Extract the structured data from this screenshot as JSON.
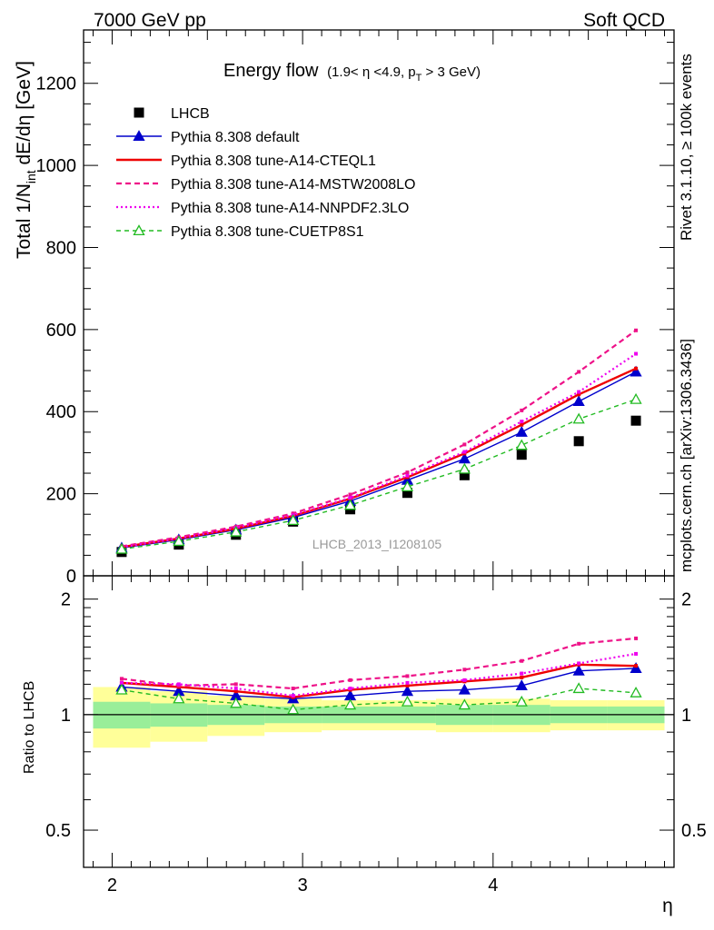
{
  "header": {
    "left": "7000 GeV pp",
    "right": "Soft QCD"
  },
  "side_labels": {
    "top": "Rivet 3.1.10, ≥ 100k events",
    "bottom": "mcplots.cern.ch [arXiv:1306.3436]"
  },
  "chart_data": [
    {
      "type": "line",
      "panel": "main",
      "title_main": "Energy flow",
      "title_sub": "(1.9< η <4.9, p",
      "title_sub_sub": "T",
      "title_sub_end": " > 3 GeV)",
      "ylabel": "Total 1/N",
      "ylabel_sub": "int",
      "ylabel_end": " dE/dη [GeV]",
      "xlabel": "η",
      "watermark": "LHCB_2013_I1208105",
      "xlim": [
        1.85,
        4.95
      ],
      "ylim": [
        0,
        1330
      ],
      "yticks": [
        0,
        200,
        400,
        600,
        800,
        1000,
        1200
      ],
      "ytick_labels": [
        "0",
        "200",
        "400",
        "600",
        "800",
        "1000",
        "1200"
      ],
      "xticks": [
        2,
        3,
        4
      ],
      "xtick_labels": [
        "2",
        "3",
        "4"
      ],
      "x": [
        2.05,
        2.35,
        2.65,
        2.95,
        3.25,
        3.55,
        3.85,
        4.15,
        4.45,
        4.75
      ],
      "bin_edges": [
        1.9,
        2.2,
        2.5,
        2.8,
        3.1,
        3.4,
        3.7,
        4.0,
        4.3,
        4.6,
        4.9
      ],
      "series": [
        {
          "name": "LHCB",
          "style": "data",
          "color": "#000000",
          "values": [
            58,
            76,
            100,
            132,
            162,
            202,
            245,
            295,
            328,
            378
          ]
        },
        {
          "name": "Pythia 8.308 default",
          "style": "solid-triangle",
          "color": "#0000cc",
          "values": [
            68,
            88,
            112,
            142,
            182,
            233,
            285,
            350,
            425,
            497
          ]
        },
        {
          "name": "Pythia 8.308 tune-A14-CTEQL1",
          "style": "solid-thick",
          "color": "#ee0000",
          "values": [
            70,
            91,
            115,
            146,
            188,
            240,
            298,
            368,
            442,
            505
          ]
        },
        {
          "name": "Pythia 8.308 tune-A14-MSTW2008LO",
          "style": "dashed",
          "color": "#ee1188",
          "values": [
            72,
            94,
            120,
            152,
            198,
            252,
            320,
            403,
            497,
            598
          ]
        },
        {
          "name": "Pythia 8.308 tune-A14-NNPDF2.3LO",
          "style": "dotted",
          "color": "#ee00ee",
          "values": [
            70,
            91,
            117,
            148,
            190,
            244,
            302,
            376,
            448,
            541
          ]
        },
        {
          "name": "Pythia 8.308 tune-CUETP8S1",
          "style": "dashed-open-triangle",
          "color": "#22bb22",
          "values": [
            65,
            84,
            107,
            135,
            172,
            217,
            260,
            318,
            382,
            430
          ]
        }
      ]
    },
    {
      "type": "line",
      "panel": "ratio",
      "ylabel": "Ratio to LHCB",
      "ylim": [
        0.4,
        2.3
      ],
      "log_scale": true,
      "yticks": [
        0.5,
        1,
        2
      ],
      "ytick_labels": [
        "0.5",
        "1",
        "2"
      ],
      "band_green": [
        [
          0.92,
          1.08
        ],
        [
          0.93,
          1.07
        ],
        [
          0.94,
          1.06
        ],
        [
          0.95,
          1.05
        ],
        [
          0.95,
          1.05
        ],
        [
          0.95,
          1.05
        ],
        [
          0.94,
          1.06
        ],
        [
          0.94,
          1.06
        ],
        [
          0.95,
          1.05
        ],
        [
          0.95,
          1.05
        ]
      ],
      "band_yellow": [
        [
          0.82,
          1.18
        ],
        [
          0.85,
          1.15
        ],
        [
          0.88,
          1.12
        ],
        [
          0.9,
          1.1
        ],
        [
          0.91,
          1.09
        ],
        [
          0.91,
          1.09
        ],
        [
          0.9,
          1.1
        ],
        [
          0.9,
          1.1
        ],
        [
          0.91,
          1.09
        ],
        [
          0.91,
          1.09
        ]
      ],
      "series": [
        {
          "name": "Pythia 8.308 default",
          "values": [
            1.18,
            1.15,
            1.12,
            1.1,
            1.12,
            1.15,
            1.16,
            1.19,
            1.3,
            1.32
          ]
        },
        {
          "name": "Pythia 8.308 tune-A14-CTEQL1",
          "values": [
            1.21,
            1.18,
            1.15,
            1.11,
            1.16,
            1.19,
            1.22,
            1.25,
            1.35,
            1.34
          ]
        },
        {
          "name": "Pythia 8.308 tune-A14-MSTW2008LO",
          "values": [
            1.24,
            1.19,
            1.2,
            1.17,
            1.23,
            1.26,
            1.31,
            1.38,
            1.53,
            1.58
          ]
        },
        {
          "name": "Pythia 8.308 tune-A14-NNPDF2.3LO",
          "values": [
            1.21,
            1.2,
            1.17,
            1.12,
            1.17,
            1.21,
            1.23,
            1.28,
            1.36,
            1.44
          ]
        },
        {
          "name": "Pythia 8.308 tune-CUETP8S1",
          "values": [
            1.16,
            1.1,
            1.07,
            1.03,
            1.06,
            1.08,
            1.06,
            1.08,
            1.17,
            1.14
          ]
        }
      ]
    }
  ]
}
